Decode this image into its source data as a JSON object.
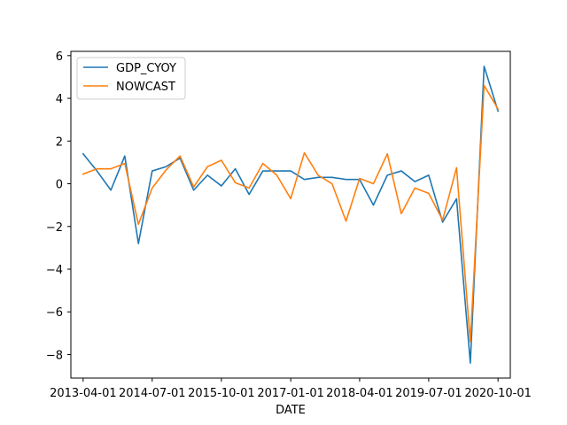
{
  "chart_data": {
    "type": "line",
    "title": "",
    "xlabel": "DATE",
    "ylabel": "",
    "x_type": "date",
    "x": [
      "2013-04-01",
      "2013-07-01",
      "2013-10-01",
      "2014-01-01",
      "2014-04-01",
      "2014-07-01",
      "2014-10-01",
      "2015-01-01",
      "2015-04-01",
      "2015-07-01",
      "2015-10-01",
      "2016-01-01",
      "2016-04-01",
      "2016-07-01",
      "2016-10-01",
      "2017-01-01",
      "2017-04-01",
      "2017-07-01",
      "2017-10-01",
      "2018-01-01",
      "2018-04-01",
      "2018-07-01",
      "2018-10-01",
      "2019-01-01",
      "2019-04-01",
      "2019-07-01",
      "2019-10-01",
      "2020-01-01",
      "2020-04-01",
      "2020-07-01",
      "2020-10-01"
    ],
    "xticks": [
      "2013-04-01",
      "2014-07-01",
      "2015-10-01",
      "2017-01-01",
      "2018-04-01",
      "2019-07-01",
      "2020-10-01"
    ],
    "yticks": [
      -8,
      -6,
      -4,
      -2,
      0,
      2,
      4,
      6
    ],
    "ylim": [
      -9.1,
      6.2
    ],
    "xlim": [
      "2013-01-10",
      "2020-12-21"
    ],
    "grid": false,
    "legend_position": "top-left",
    "series": [
      {
        "name": "GDP_CYOY",
        "color": "#1f77b4",
        "values": [
          1.4,
          0.6,
          -0.3,
          1.3,
          -2.8,
          0.6,
          0.8,
          1.2,
          -0.3,
          0.4,
          -0.1,
          0.7,
          -0.5,
          0.6,
          0.6,
          0.6,
          0.2,
          0.3,
          0.3,
          0.2,
          0.2,
          -1.0,
          0.4,
          0.6,
          0.1,
          0.4,
          -1.8,
          -0.7,
          -8.4,
          5.5,
          3.4
        ]
      },
      {
        "name": "NOWCAST",
        "color": "#ff7f0e",
        "values": [
          0.45,
          0.7,
          0.7,
          0.95,
          -1.9,
          -0.2,
          0.65,
          1.3,
          -0.15,
          0.8,
          1.1,
          0.05,
          -0.2,
          0.95,
          0.4,
          -0.7,
          1.45,
          0.4,
          0.0,
          -1.75,
          0.25,
          0.0,
          1.4,
          -1.4,
          -0.2,
          -0.45,
          -1.7,
          0.75,
          -7.4,
          4.6,
          3.5
        ]
      }
    ]
  }
}
